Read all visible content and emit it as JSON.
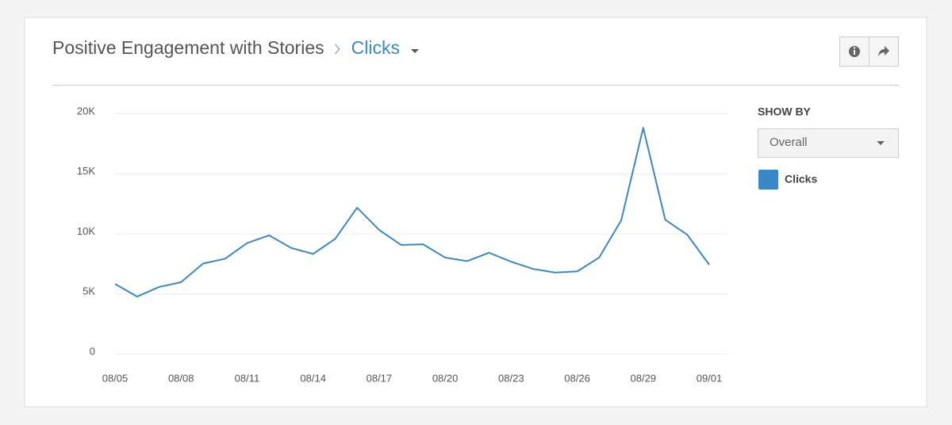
{
  "header": {
    "title": "Positive Engagement with Stories",
    "breadcrumb": "Clicks"
  },
  "sidebar": {
    "label": "SHOW BY",
    "dropdown": "Overall"
  },
  "chart_data": {
    "type": "line",
    "categories": [
      "08/05",
      null,
      null,
      "08/08",
      null,
      null,
      "08/11",
      null,
      null,
      "08/14",
      null,
      null,
      "08/17",
      null,
      null,
      "08/20",
      null,
      null,
      "08/23",
      null,
      null,
      "08/26",
      null,
      null,
      "08/29",
      null,
      null,
      "09/01"
    ],
    "series": [
      {
        "name": "Clicks",
        "color": "#3a87c8",
        "values": [
          5800,
          4750,
          5550,
          5950,
          7500,
          7900,
          9200,
          9850,
          8800,
          8300,
          9550,
          12150,
          10300,
          9050,
          9100,
          8000,
          7700,
          8400,
          7650,
          7050,
          6750,
          6850,
          8000,
          11100,
          18800,
          11150,
          9900,
          7400
        ]
      }
    ],
    "ylim": [
      0,
      20000
    ],
    "yticks": [
      0,
      {
        "value": 5000,
        "label": "5K"
      },
      {
        "value": 10000,
        "label": "10K"
      },
      {
        "value": 15000,
        "label": "15K"
      },
      {
        "value": 20000,
        "label": "20K"
      }
    ],
    "grid": true
  }
}
